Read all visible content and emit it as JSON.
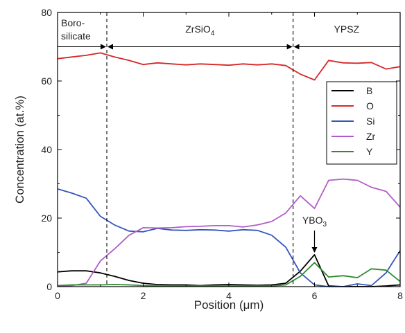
{
  "chart_data": {
    "type": "line",
    "xlabel": "Position (μm)",
    "ylabel": "Concentration (at.%)",
    "xlim": [
      0,
      8
    ],
    "ylim": [
      0,
      80
    ],
    "xticks": [
      "0",
      "2",
      "4",
      "6",
      "8"
    ],
    "yticks": [
      "0",
      "20",
      "40",
      "60",
      "80"
    ],
    "grid": false,
    "legend_position": "right-middle",
    "regions": [
      {
        "label_line1": "Boro-",
        "label_line2": "silicate",
        "x_start": 0,
        "x_end": 1.15
      },
      {
        "label": "ZrSiO",
        "label_sub": "4",
        "x_start": 1.15,
        "x_end": 5.5
      },
      {
        "label": "YPSZ",
        "x_start": 5.5,
        "x_end": 8
      }
    ],
    "region_arrow_y": 70,
    "boundaries": [
      1.15,
      5.5
    ],
    "annotation": {
      "text": "YBO",
      "sub": "3",
      "x": 6.0,
      "y": 9.5
    },
    "series": [
      {
        "name": "B",
        "color": "#000000",
        "points": [
          [
            0,
            4.3
          ],
          [
            0.33,
            4.6
          ],
          [
            0.67,
            4.6
          ],
          [
            1.0,
            4.0
          ],
          [
            1.33,
            3.0
          ],
          [
            1.67,
            1.8
          ],
          [
            2.0,
            1.0
          ],
          [
            2.33,
            0.6
          ],
          [
            2.67,
            0.5
          ],
          [
            3.0,
            0.5
          ],
          [
            3.33,
            0.3
          ],
          [
            3.67,
            0.5
          ],
          [
            4.0,
            0.6
          ],
          [
            4.33,
            0.5
          ],
          [
            4.67,
            0.4
          ],
          [
            5.0,
            0.5
          ],
          [
            5.33,
            1.0
          ],
          [
            5.67,
            4.5
          ],
          [
            6.0,
            9.3
          ],
          [
            6.33,
            0.2
          ],
          [
            6.67,
            0.0
          ],
          [
            7.0,
            0.0
          ],
          [
            7.33,
            0.0
          ],
          [
            7.67,
            0.2
          ],
          [
            8.0,
            0.5
          ]
        ]
      },
      {
        "name": "O",
        "color": "#d62728",
        "points": [
          [
            0,
            66.5
          ],
          [
            0.33,
            67.0
          ],
          [
            0.67,
            67.5
          ],
          [
            1.0,
            68.2
          ],
          [
            1.33,
            67.0
          ],
          [
            1.67,
            66.0
          ],
          [
            2.0,
            64.8
          ],
          [
            2.33,
            65.3
          ],
          [
            2.67,
            65.0
          ],
          [
            3.0,
            64.7
          ],
          [
            3.33,
            65.0
          ],
          [
            3.67,
            64.8
          ],
          [
            4.0,
            64.6
          ],
          [
            4.33,
            65.0
          ],
          [
            4.67,
            64.7
          ],
          [
            5.0,
            65.0
          ],
          [
            5.33,
            64.5
          ],
          [
            5.67,
            62.0
          ],
          [
            6.0,
            60.3
          ],
          [
            6.33,
            66.0
          ],
          [
            6.67,
            65.3
          ],
          [
            7.0,
            65.2
          ],
          [
            7.33,
            65.4
          ],
          [
            7.67,
            63.5
          ],
          [
            8.0,
            64.2
          ]
        ]
      },
      {
        "name": "Si",
        "color": "#3355bb",
        "points": [
          [
            0,
            28.5
          ],
          [
            0.33,
            27.3
          ],
          [
            0.67,
            25.8
          ],
          [
            1.0,
            20.5
          ],
          [
            1.33,
            18.0
          ],
          [
            1.67,
            16.2
          ],
          [
            2.0,
            16.0
          ],
          [
            2.33,
            17.0
          ],
          [
            2.67,
            16.5
          ],
          [
            3.0,
            16.4
          ],
          [
            3.33,
            16.6
          ],
          [
            3.67,
            16.5
          ],
          [
            4.0,
            16.2
          ],
          [
            4.33,
            16.6
          ],
          [
            4.67,
            16.4
          ],
          [
            5.0,
            15.0
          ],
          [
            5.33,
            11.5
          ],
          [
            5.67,
            4.0
          ],
          [
            6.0,
            0.5
          ],
          [
            6.33,
            0.0
          ],
          [
            6.67,
            0.0
          ],
          [
            7.0,
            0.8
          ],
          [
            7.33,
            0.3
          ],
          [
            7.67,
            4.0
          ],
          [
            8.0,
            10.5
          ]
        ]
      },
      {
        "name": "Zr",
        "color": "#b05cc8",
        "points": [
          [
            0,
            0.2
          ],
          [
            0.33,
            0.3
          ],
          [
            0.67,
            1.0
          ],
          [
            1.0,
            7.5
          ],
          [
            1.33,
            11.0
          ],
          [
            1.67,
            15.0
          ],
          [
            2.0,
            17.2
          ],
          [
            2.33,
            17.1
          ],
          [
            2.67,
            17.2
          ],
          [
            3.0,
            17.5
          ],
          [
            3.33,
            17.6
          ],
          [
            3.67,
            17.8
          ],
          [
            4.0,
            17.8
          ],
          [
            4.33,
            17.4
          ],
          [
            4.67,
            18.0
          ],
          [
            5.0,
            19.0
          ],
          [
            5.33,
            21.5
          ],
          [
            5.67,
            26.5
          ],
          [
            6.0,
            22.8
          ],
          [
            6.33,
            31.0
          ],
          [
            6.67,
            31.4
          ],
          [
            7.0,
            31.0
          ],
          [
            7.33,
            29.0
          ],
          [
            7.67,
            27.8
          ],
          [
            8.0,
            23.2
          ]
        ]
      },
      {
        "name": "Y",
        "color": "#2e8b2e",
        "points": [
          [
            0,
            0.3
          ],
          [
            0.33,
            0.5
          ],
          [
            0.67,
            0.5
          ],
          [
            1.0,
            0.5
          ],
          [
            1.33,
            0.6
          ],
          [
            1.67,
            0.5
          ],
          [
            2.0,
            0.3
          ],
          [
            2.33,
            0.2
          ],
          [
            2.67,
            0.2
          ],
          [
            3.0,
            0.2
          ],
          [
            3.33,
            0.2
          ],
          [
            3.67,
            0.2
          ],
          [
            4.0,
            0.2
          ],
          [
            4.33,
            0.2
          ],
          [
            4.67,
            0.2
          ],
          [
            5.0,
            0.2
          ],
          [
            5.33,
            0.5
          ],
          [
            5.67,
            3.0
          ],
          [
            6.0,
            7.0
          ],
          [
            6.33,
            2.8
          ],
          [
            6.67,
            3.2
          ],
          [
            7.0,
            2.6
          ],
          [
            7.33,
            5.2
          ],
          [
            7.67,
            4.8
          ],
          [
            8.0,
            1.5
          ]
        ]
      }
    ]
  }
}
